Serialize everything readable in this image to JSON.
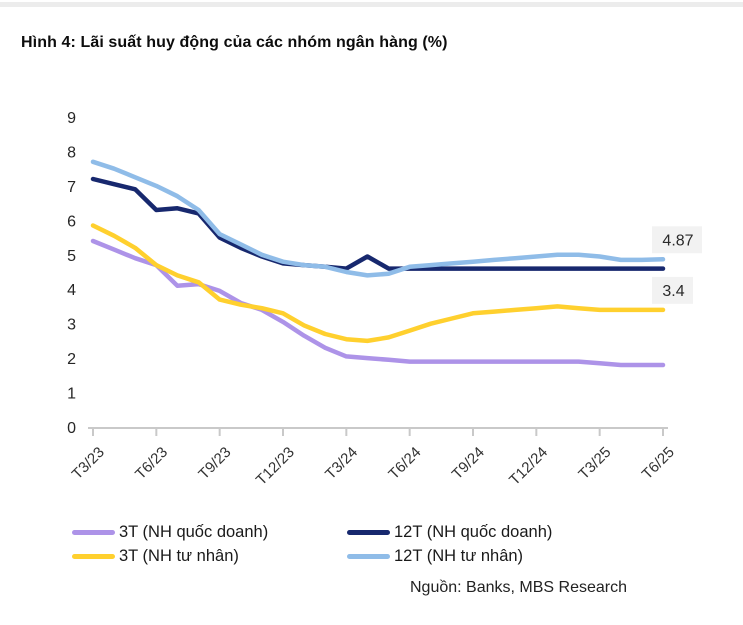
{
  "header": {
    "title": "Hình 4: Lãi suất huy động của các nhóm ngân hàng (%)"
  },
  "chart_data": {
    "type": "line",
    "title": "Hình 4: Lãi suất huy động của các nhóm ngân hàng (%)",
    "xlabel": "",
    "ylabel": "",
    "ylim": [
      0,
      9
    ],
    "y_ticks": [
      0,
      1,
      2,
      3,
      4,
      5,
      6,
      7,
      8,
      9
    ],
    "grid": false,
    "legend_position": "bottom",
    "x": [
      "T3/23",
      "T4/23",
      "T5/23",
      "T6/23",
      "T7/23",
      "T8/23",
      "T9/23",
      "T10/23",
      "T11/23",
      "T12/23",
      "T1/24",
      "T2/24",
      "T3/24",
      "T4/24",
      "T5/24",
      "T6/24",
      "T7/24",
      "T8/24",
      "T9/24",
      "T10/24",
      "T11/24",
      "T12/24",
      "T1/25",
      "T2/25",
      "T3/25",
      "T4/25",
      "T5/25",
      "T6/25"
    ],
    "tick_labels": [
      "T3/23",
      "T6/23",
      "T9/23",
      "T12/23",
      "T3/24",
      "T6/24",
      "T9/24",
      "T12/24",
      "T3/25",
      "T6/25"
    ],
    "series": [
      {
        "name": "3T (NH quốc doanh)",
        "color": "#ad93e8",
        "values": [
          5.4,
          5.15,
          4.9,
          4.7,
          4.1,
          4.15,
          3.95,
          3.6,
          3.4,
          3.05,
          2.65,
          2.3,
          2.05,
          2.0,
          1.95,
          1.9,
          1.9,
          1.9,
          1.9,
          1.9,
          1.9,
          1.9,
          1.9,
          1.9,
          1.85,
          1.8,
          1.8,
          1.8
        ]
      },
      {
        "name": "3T (NH tư nhân)",
        "color": "#ffd02e",
        "values": [
          5.85,
          5.55,
          5.2,
          4.7,
          4.4,
          4.2,
          3.7,
          3.55,
          3.45,
          3.3,
          2.95,
          2.7,
          2.55,
          2.5,
          2.6,
          2.8,
          3.0,
          3.15,
          3.3,
          3.35,
          3.4,
          3.45,
          3.5,
          3.45,
          3.4,
          3.4,
          3.4,
          3.4
        ]
      },
      {
        "name": "12T (NH quốc doanh)",
        "color": "#17286e",
        "values": [
          7.2,
          7.05,
          6.9,
          6.3,
          6.35,
          6.2,
          5.5,
          5.2,
          4.95,
          4.75,
          4.7,
          4.65,
          4.6,
          4.95,
          4.6,
          4.6,
          4.6,
          4.6,
          4.6,
          4.6,
          4.6,
          4.6,
          4.6,
          4.6,
          4.6,
          4.6,
          4.6,
          4.6
        ]
      },
      {
        "name": "12T (NH tư nhân)",
        "color": "#8fbce8",
        "values": [
          7.7,
          7.5,
          7.25,
          7.0,
          6.7,
          6.3,
          5.6,
          5.3,
          5.0,
          4.8,
          4.7,
          4.65,
          4.5,
          4.4,
          4.45,
          4.65,
          4.7,
          4.75,
          4.8,
          4.85,
          4.9,
          4.95,
          5.0,
          5.0,
          4.95,
          4.85,
          4.85,
          4.87
        ]
      }
    ],
    "annotations": [
      {
        "text": "4.87",
        "series_index": 3,
        "box_color": "#f2f2f2"
      },
      {
        "text": "3.4",
        "series_index": 1,
        "box_color": "#f2f2f2"
      }
    ]
  },
  "legend": {
    "items_note": "legend mirrors chart_data.series order"
  },
  "source_label": "Nguồn: Banks, MBS Research"
}
